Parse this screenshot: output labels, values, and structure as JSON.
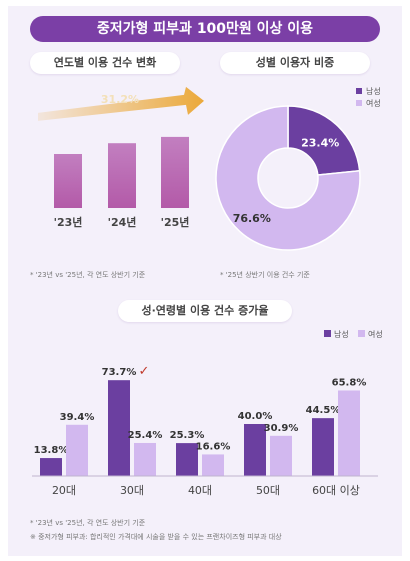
{
  "title": "중저가형 피부과 100만원 이상 이용",
  "colors": {
    "male": "#6b3fa0",
    "female": "#d2b8ef",
    "bar_top": "#c27fc0",
    "bar_bottom": "#b35aa8",
    "arrow": "#eba93a",
    "title_bg": "#7b3fa6"
  },
  "chart_data": [
    {
      "type": "bar",
      "title": "연도별 이용 건수 변화",
      "categories": [
        "'23년",
        "'24년",
        "'25년"
      ],
      "values": [
        60,
        72,
        79
      ],
      "growth_label": "31.2%",
      "note": "* '23년 vs '25년, 각 연도 상반기 기준"
    },
    {
      "type": "pie",
      "title": "성별 이용자 비중",
      "legend": [
        "남성",
        "여성"
      ],
      "legend_position": "top-right",
      "series": [
        {
          "name": "남성",
          "value": 23.4,
          "label": "23.4%"
        },
        {
          "name": "여성",
          "value": 76.6,
          "label": "76.6%"
        }
      ],
      "note": "* '25년 상반기 이용 건수 기준"
    },
    {
      "type": "bar",
      "title": "성·연령별 이용 건수 증가율",
      "legend": [
        "남성",
        "여성"
      ],
      "legend_position": "top-right",
      "categories": [
        "20대",
        "30대",
        "40대",
        "50대",
        "60대 이상"
      ],
      "series": [
        {
          "name": "남성",
          "values": [
            13.8,
            73.7,
            25.3,
            40.0,
            44.5
          ],
          "labels": [
            "13.8%",
            "73.7%",
            "25.3%",
            "40.0%",
            "44.5%"
          ]
        },
        {
          "name": "여성",
          "values": [
            39.4,
            25.4,
            16.6,
            30.9,
            65.8
          ],
          "labels": [
            "39.4%",
            "25.4%",
            "16.6%",
            "30.9%",
            "65.8%"
          ]
        }
      ],
      "highlight": {
        "category": "30대",
        "symbol": "✓"
      },
      "notes": [
        "* '23년 vs '25년, 각 연도 상반기 기준",
        "※ 중저가형 피부과: 합리적인 가격대에 시술을 받을 수 있는 프랜차이즈형 피부과 대상"
      ]
    }
  ]
}
